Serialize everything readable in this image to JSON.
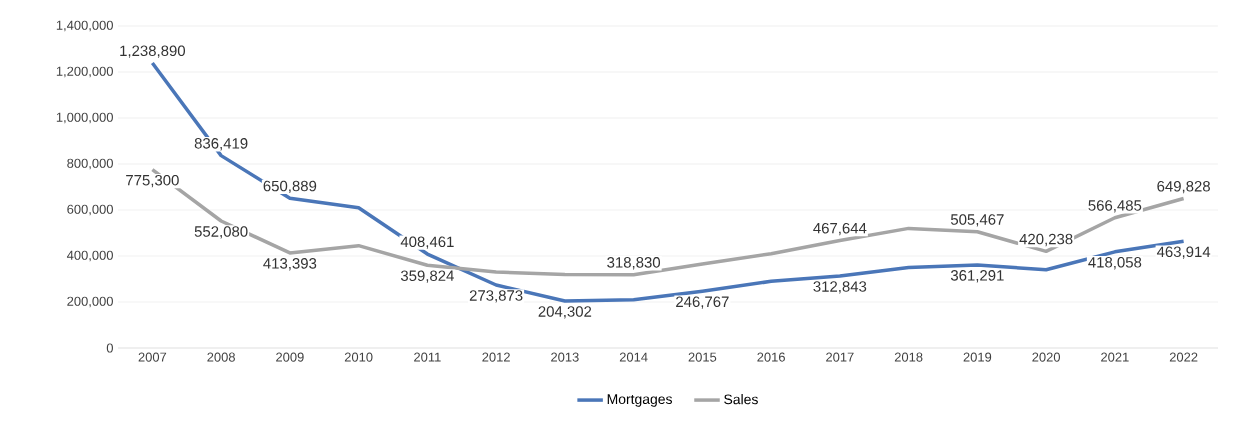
{
  "chart_data": {
    "type": "line",
    "categories": [
      "2007",
      "2008",
      "2009",
      "2010",
      "2011",
      "2012",
      "2013",
      "2014",
      "2015",
      "2016",
      "2017",
      "2018",
      "2019",
      "2020",
      "2021",
      "2022"
    ],
    "series": [
      {
        "name": "Mortgages",
        "color": "#4a76b8",
        "values": [
          1238890,
          836419,
          650889,
          610000,
          408461,
          273873,
          204302,
          210000,
          246767,
          290000,
          312843,
          350000,
          361291,
          340000,
          418058,
          463914
        ],
        "value_labels": [
          "1,238,890",
          "836,419",
          "650,889",
          null,
          "408,461",
          "273,873",
          "204,302",
          null,
          "246,767",
          null,
          "312,843",
          null,
          "361,291",
          null,
          "418,058",
          "463,914"
        ]
      },
      {
        "name": "Sales",
        "color": "#a5a5a5",
        "values": [
          775300,
          552080,
          413393,
          445000,
          359824,
          330000,
          320000,
          318830,
          365000,
          410000,
          467644,
          520000,
          505467,
          420238,
          566485,
          649828
        ],
        "value_labels": [
          "775,300",
          "552,080",
          "413,393",
          null,
          "359,824",
          null,
          null,
          "318,830",
          null,
          null,
          "467,644",
          null,
          "505,467",
          "420,238",
          "566,485",
          "649,828"
        ]
      }
    ],
    "ylim": [
      0,
      1400000
    ],
    "yticks": [
      {
        "value": 0,
        "label": "0"
      },
      {
        "value": 200000,
        "label": "200,000"
      },
      {
        "value": 400000,
        "label": "400,000"
      },
      {
        "value": 600000,
        "label": "600,000"
      },
      {
        "value": 800000,
        "label": "800,000"
      },
      {
        "value": 1000000,
        "label": "1,000,000"
      },
      {
        "value": 1200000,
        "label": "1,200,000"
      },
      {
        "value": 1400000,
        "label": "1,400,000"
      }
    ],
    "grid": "y",
    "legend": "bottom",
    "marker": "none",
    "line_style": "solid"
  }
}
